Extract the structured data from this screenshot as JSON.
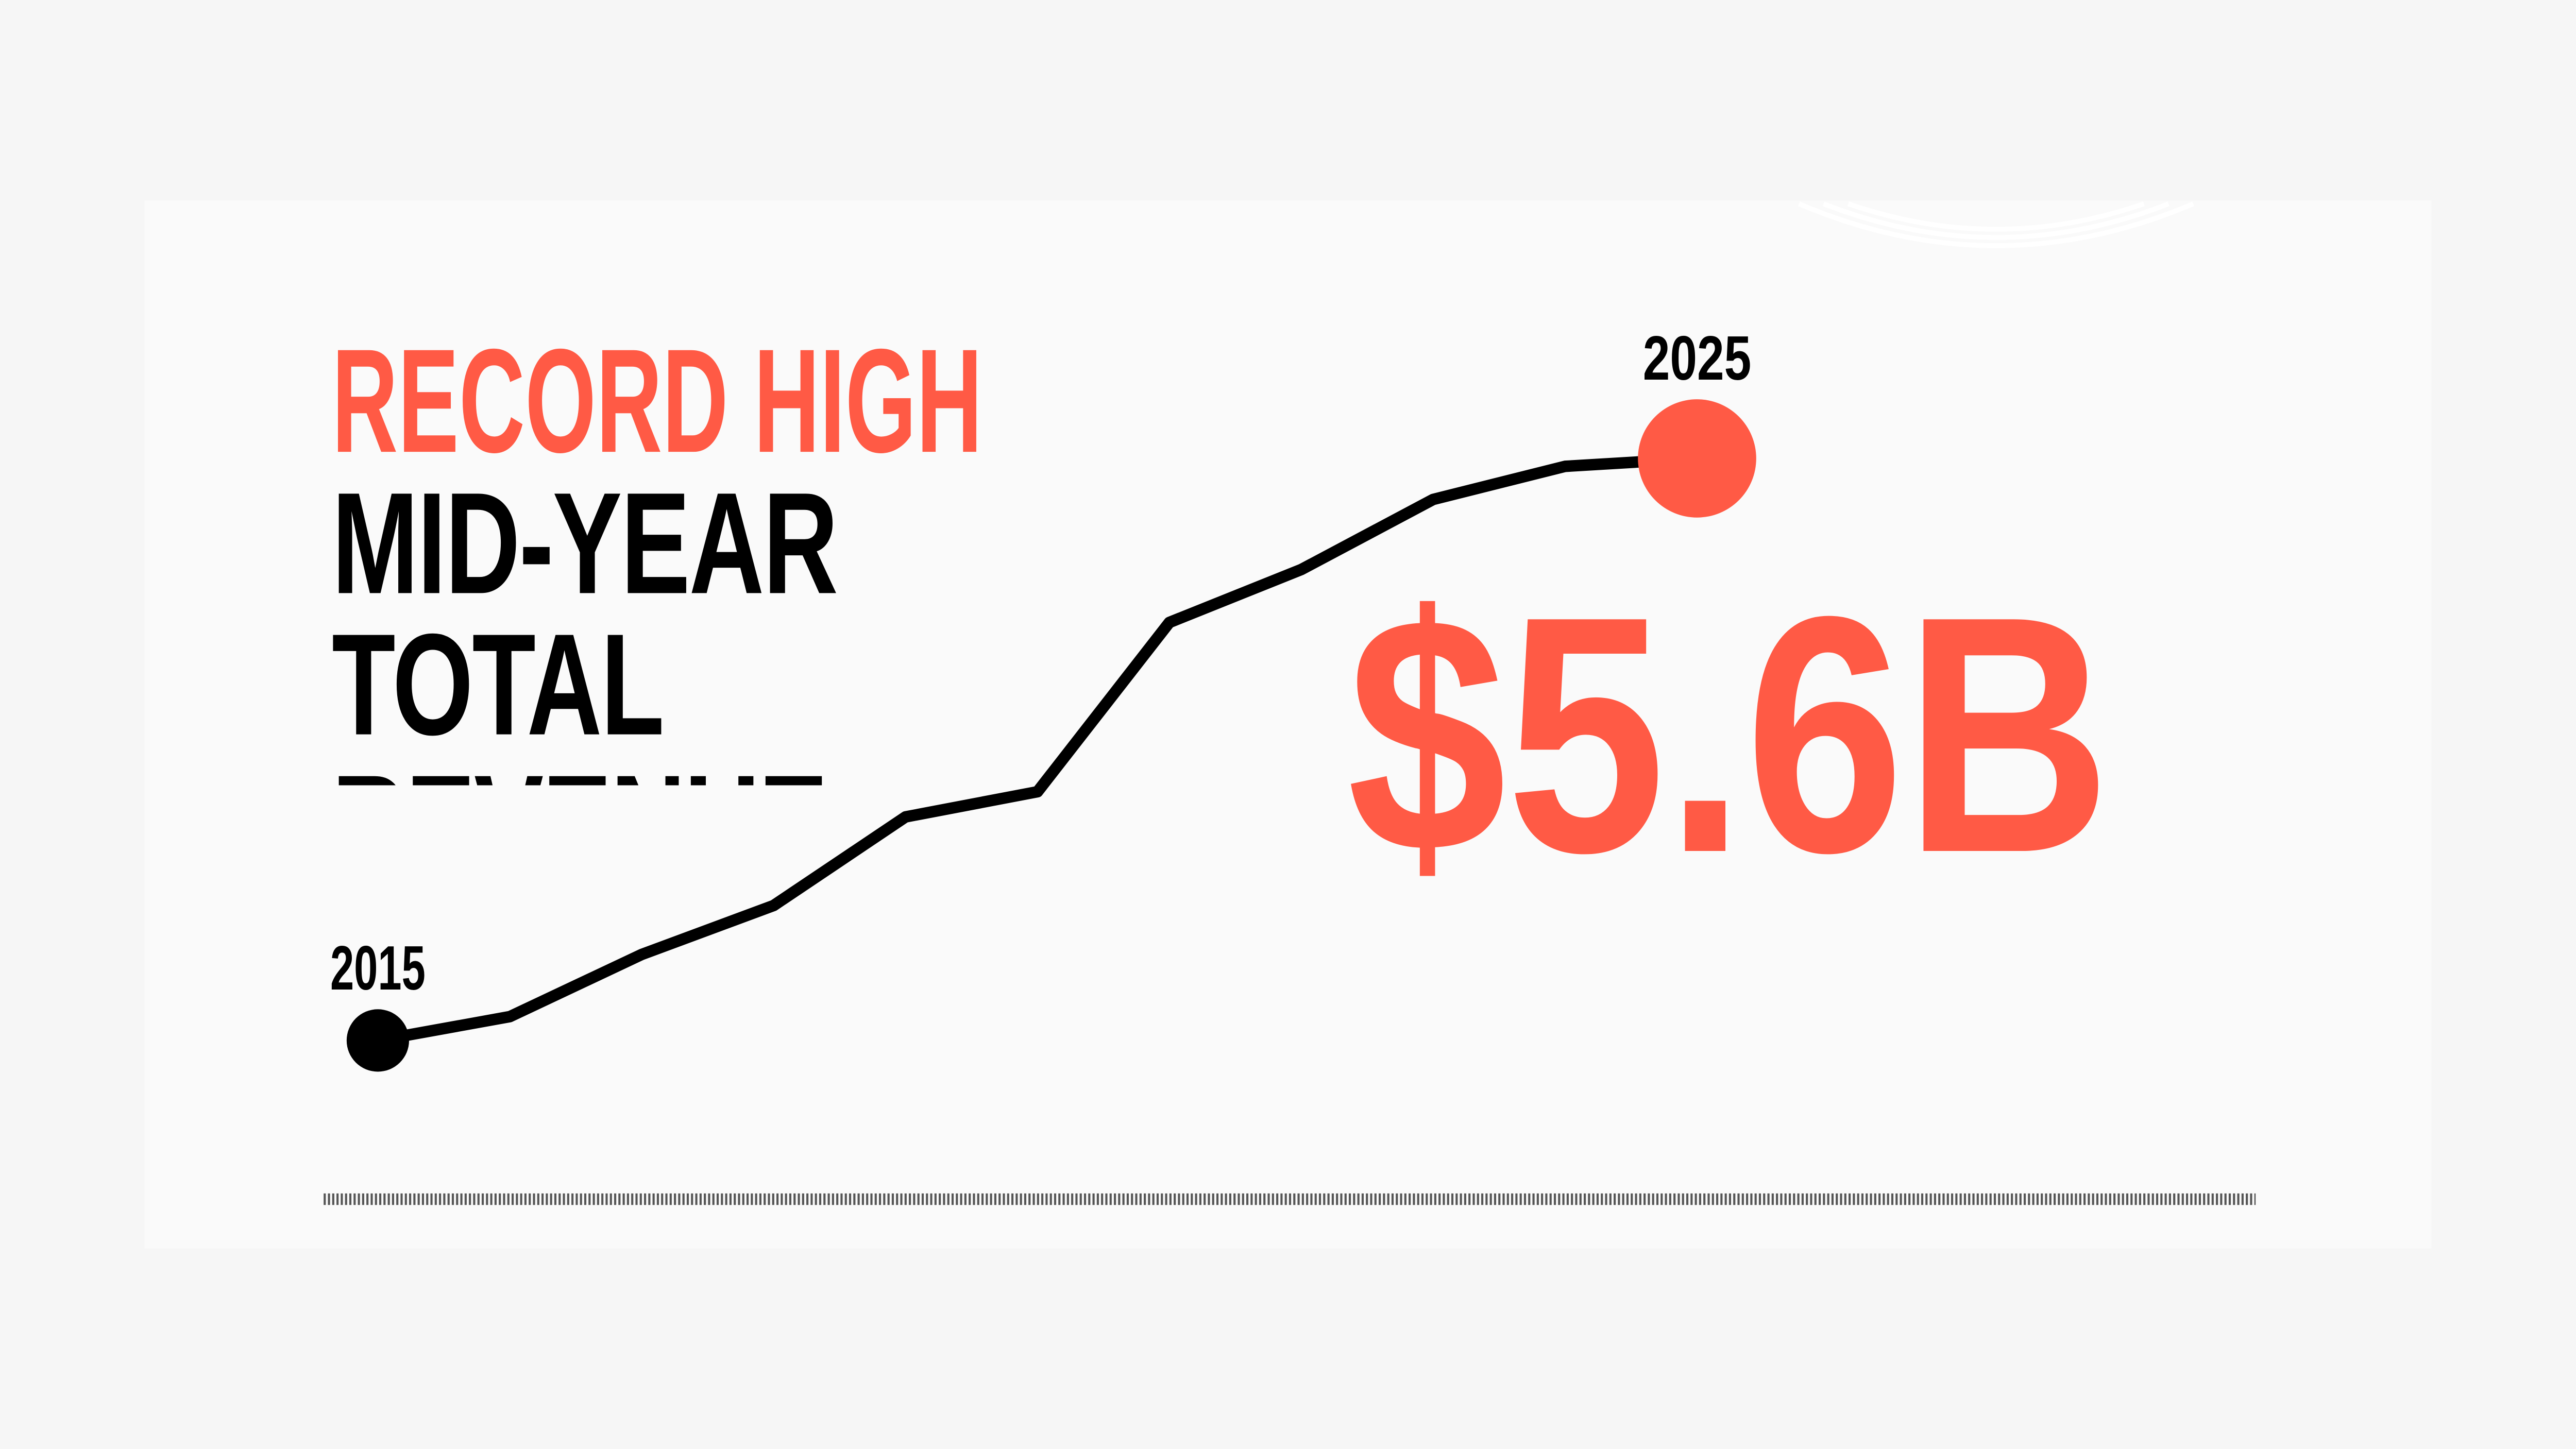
{
  "chart_data": {
    "type": "line",
    "title": "RECORD HIGH",
    "subtitle": "MID-YEAR TOTAL REVENUE",
    "categories": [
      "2015",
      null,
      null,
      null,
      null,
      null,
      null,
      null,
      null,
      null,
      "2025"
    ],
    "values": [
      1.2,
      1.38,
      1.85,
      2.22,
      2.89,
      3.08,
      4.36,
      4.76,
      5.29,
      5.54,
      5.6
    ],
    "value_labels": [
      null,
      null,
      null,
      null,
      null,
      null,
      null,
      null,
      null,
      null,
      "$5.6B"
    ],
    "color": "#000000",
    "highlight_color": "#ff5a45"
  }
}
